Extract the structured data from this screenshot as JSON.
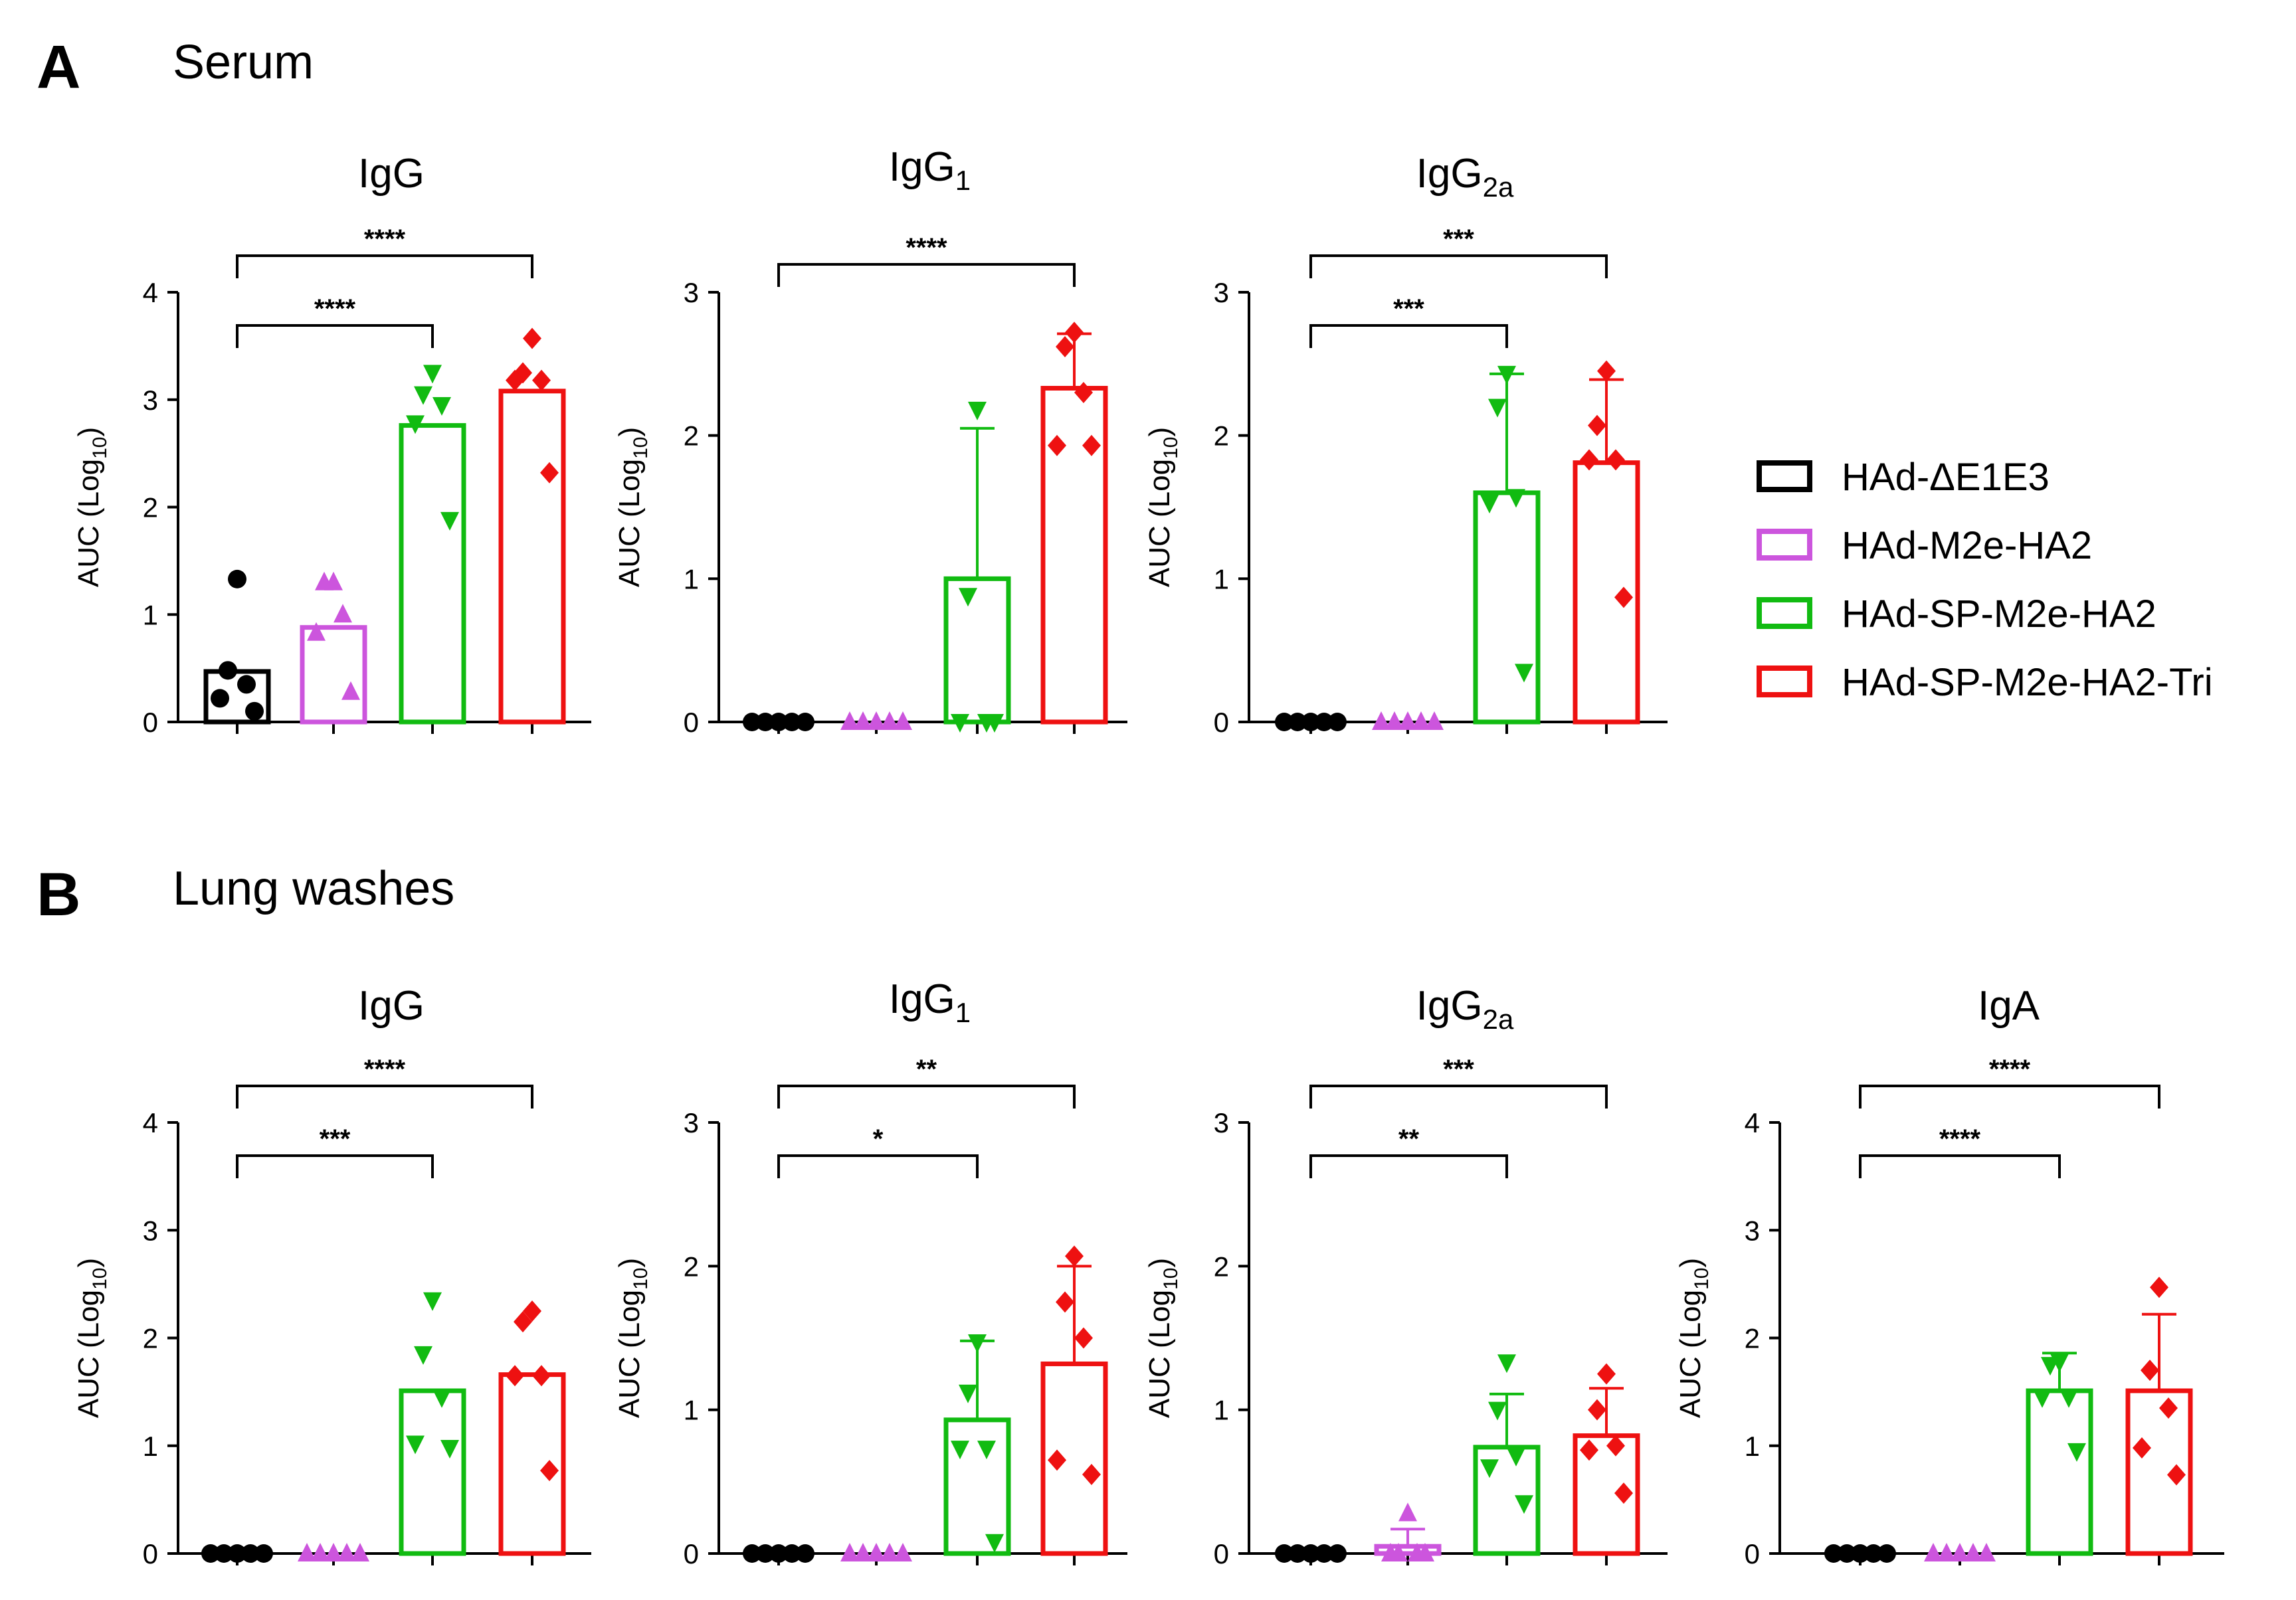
{
  "panels": [
    {
      "letter": "A",
      "title": "Serum"
    },
    {
      "letter": "B",
      "title": "Lung washes"
    }
  ],
  "legend": [
    {
      "label": "HAd-ΔE1E3",
      "color": "#000000"
    },
    {
      "label": "HAd-M2e-HA2",
      "color": "#cc55dd"
    },
    {
      "label": "HAd-SP-M2e-HA2",
      "color": "#11bb11"
    },
    {
      "label": "HAd-SP-M2e-HA2-Tri",
      "color": "#ee1111"
    }
  ],
  "colors": {
    "g1": "#000000",
    "g2": "#cc55dd",
    "g3": "#11bb11",
    "g4": "#ee1111"
  },
  "markers": [
    "circle",
    "triangle-up",
    "triangle-down",
    "diamond"
  ],
  "chart_data": [
    {
      "type": "bar",
      "panel": "A",
      "title": "IgG",
      "title_sub": "",
      "ylabel_main": "AUC (Log",
      "ylabel_sub": "10",
      "ylabel_end": ")",
      "ylim": [
        0,
        4
      ],
      "yticks": [
        0,
        1,
        2,
        3,
        4
      ],
      "categories": [
        "HAd-ΔE1E3",
        "HAd-M2e-HA2",
        "HAd-SP-M2e-HA2",
        "HAd-SP-M2e-HA2-Tri"
      ],
      "means": [
        0.47,
        0.88,
        2.76,
        3.08
      ],
      "errors": [
        null,
        null,
        null,
        null
      ],
      "points": [
        [
          1.33,
          0.48,
          0.35,
          0.22,
          0.1
        ],
        [
          1.3,
          1.3,
          1.0,
          0.83,
          0.28
        ],
        [
          3.25,
          3.05,
          2.95,
          2.78,
          1.88
        ],
        [
          3.57,
          3.25,
          3.18,
          3.18,
          2.32
        ]
      ],
      "significance": [
        {
          "from": 0,
          "to": 2,
          "label": "****"
        },
        {
          "from": 0,
          "to": 3,
          "label": "****"
        }
      ]
    },
    {
      "type": "bar",
      "panel": "A",
      "title": "IgG",
      "title_sub": "1",
      "ylabel_main": "AUC (Log",
      "ylabel_sub": "10",
      "ylabel_end": ")",
      "ylim": [
        0,
        3
      ],
      "yticks": [
        0,
        1,
        2,
        3
      ],
      "categories": [
        "HAd-ΔE1E3",
        "HAd-M2e-HA2",
        "HAd-SP-M2e-HA2",
        "HAd-SP-M2e-HA2-Tri"
      ],
      "means": [
        0,
        0,
        1.0,
        2.33
      ],
      "errors": [
        null,
        null,
        1.05,
        0.38
      ],
      "points": [
        [
          0,
          0,
          0,
          0,
          0
        ],
        [
          0,
          0,
          0,
          0,
          0
        ],
        [
          2.18,
          0.88,
          0,
          0,
          0
        ],
        [
          2.72,
          2.62,
          2.3,
          1.93,
          1.93
        ]
      ],
      "significance": [
        {
          "from": 0,
          "to": 3,
          "label": "****"
        }
      ]
    },
    {
      "type": "bar",
      "panel": "A",
      "title": "IgG",
      "title_sub": "2a",
      "ylabel_main": "AUC (Log",
      "ylabel_sub": "10",
      "ylabel_end": ")",
      "ylim": [
        0,
        3
      ],
      "yticks": [
        0,
        1,
        2,
        3
      ],
      "categories": [
        "HAd-ΔE1E3",
        "HAd-M2e-HA2",
        "HAd-SP-M2e-HA2",
        "HAd-SP-M2e-HA2-Tri"
      ],
      "means": [
        0,
        0,
        1.6,
        1.81
      ],
      "errors": [
        null,
        null,
        0.83,
        0.58
      ],
      "points": [
        [
          0,
          0,
          0,
          0,
          0
        ],
        [
          0,
          0,
          0,
          0,
          0
        ],
        [
          2.43,
          2.2,
          1.57,
          1.53,
          0.35
        ],
        [
          2.45,
          2.07,
          1.83,
          1.83,
          0.87
        ]
      ],
      "significance": [
        {
          "from": 0,
          "to": 2,
          "label": "***"
        },
        {
          "from": 0,
          "to": 3,
          "label": "***"
        }
      ]
    },
    {
      "type": "bar",
      "panel": "B",
      "title": "IgG",
      "title_sub": "",
      "ylabel_main": "AUC (Log",
      "ylabel_sub": "10",
      "ylabel_end": ")",
      "ylim": [
        0,
        4
      ],
      "yticks": [
        0,
        1,
        2,
        3,
        4
      ],
      "categories": [
        "HAd-ΔE1E3",
        "HAd-M2e-HA2",
        "HAd-SP-M2e-HA2",
        "HAd-SP-M2e-HA2-Tri"
      ],
      "means": [
        0,
        0,
        1.51,
        1.66
      ],
      "errors": [
        null,
        null,
        null,
        null
      ],
      "points": [
        [
          0,
          0,
          0,
          0,
          0
        ],
        [
          0,
          0,
          0,
          0,
          0
        ],
        [
          2.35,
          1.85,
          1.45,
          1.02,
          0.98
        ],
        [
          2.25,
          2.15,
          1.65,
          1.65,
          0.77
        ]
      ],
      "significance": [
        {
          "from": 0,
          "to": 2,
          "label": "***"
        },
        {
          "from": 0,
          "to": 3,
          "label": "****"
        }
      ]
    },
    {
      "type": "bar",
      "panel": "B",
      "title": "IgG",
      "title_sub": "1",
      "ylabel_main": "AUC (Log",
      "ylabel_sub": "10",
      "ylabel_end": ")",
      "ylim": [
        0,
        3
      ],
      "yticks": [
        0,
        1,
        2,
        3
      ],
      "categories": [
        "HAd-ΔE1E3",
        "HAd-M2e-HA2",
        "HAd-SP-M2e-HA2",
        "HAd-SP-M2e-HA2-Tri"
      ],
      "means": [
        0,
        0,
        0.93,
        1.32
      ],
      "errors": [
        null,
        null,
        0.55,
        0.68
      ],
      "points": [
        [
          0,
          0,
          0,
          0,
          0
        ],
        [
          0,
          0,
          0,
          0,
          0
        ],
        [
          1.47,
          1.12,
          0.73,
          0.73,
          0.08
        ],
        [
          2.07,
          1.75,
          1.5,
          0.65,
          0.55
        ]
      ],
      "significance": [
        {
          "from": 0,
          "to": 2,
          "label": "*"
        },
        {
          "from": 0,
          "to": 3,
          "label": "**"
        }
      ]
    },
    {
      "type": "bar",
      "panel": "B",
      "title": "IgG",
      "title_sub": "2a",
      "ylabel_main": "AUC (Log",
      "ylabel_sub": "10",
      "ylabel_end": ")",
      "ylim": [
        0,
        3
      ],
      "yticks": [
        0,
        1,
        2,
        3
      ],
      "categories": [
        "HAd-ΔE1E3",
        "HAd-M2e-HA2",
        "HAd-SP-M2e-HA2",
        "HAd-SP-M2e-HA2-Tri"
      ],
      "means": [
        0,
        0.05,
        0.74,
        0.82
      ],
      "errors": [
        null,
        0.12,
        0.37,
        0.33
      ],
      "points": [
        [
          0,
          0,
          0,
          0,
          0
        ],
        [
          0.28,
          0.0,
          0.0,
          0.0,
          0.0
        ],
        [
          1.33,
          1.0,
          0.68,
          0.6,
          0.35
        ],
        [
          1.25,
          1.0,
          0.75,
          0.72,
          0.42
        ]
      ],
      "significance": [
        {
          "from": 0,
          "to": 2,
          "label": "**"
        },
        {
          "from": 0,
          "to": 3,
          "label": "***"
        }
      ]
    },
    {
      "type": "bar",
      "panel": "B",
      "title": "IgA",
      "title_sub": "",
      "ylabel_main": "AUC (Log",
      "ylabel_sub": "10",
      "ylabel_end": ")",
      "ylim": [
        0,
        4
      ],
      "yticks": [
        0,
        1,
        2,
        3,
        4
      ],
      "categories": [
        "HAd-ΔE1E3",
        "HAd-M2e-HA2",
        "HAd-SP-M2e-HA2",
        "HAd-SP-M2e-HA2-Tri"
      ],
      "means": [
        0,
        0,
        1.51,
        1.51
      ],
      "errors": [
        null,
        null,
        0.35,
        0.71
      ],
      "points": [
        [
          0,
          0,
          0,
          0,
          0
        ],
        [
          0,
          0,
          0,
          0,
          0
        ],
        [
          1.78,
          1.75,
          1.45,
          1.45,
          0.95
        ],
        [
          2.47,
          1.7,
          1.35,
          0.98,
          0.73
        ]
      ],
      "significance": [
        {
          "from": 0,
          "to": 2,
          "label": "****"
        },
        {
          "from": 0,
          "to": 3,
          "label": "****"
        }
      ]
    }
  ]
}
